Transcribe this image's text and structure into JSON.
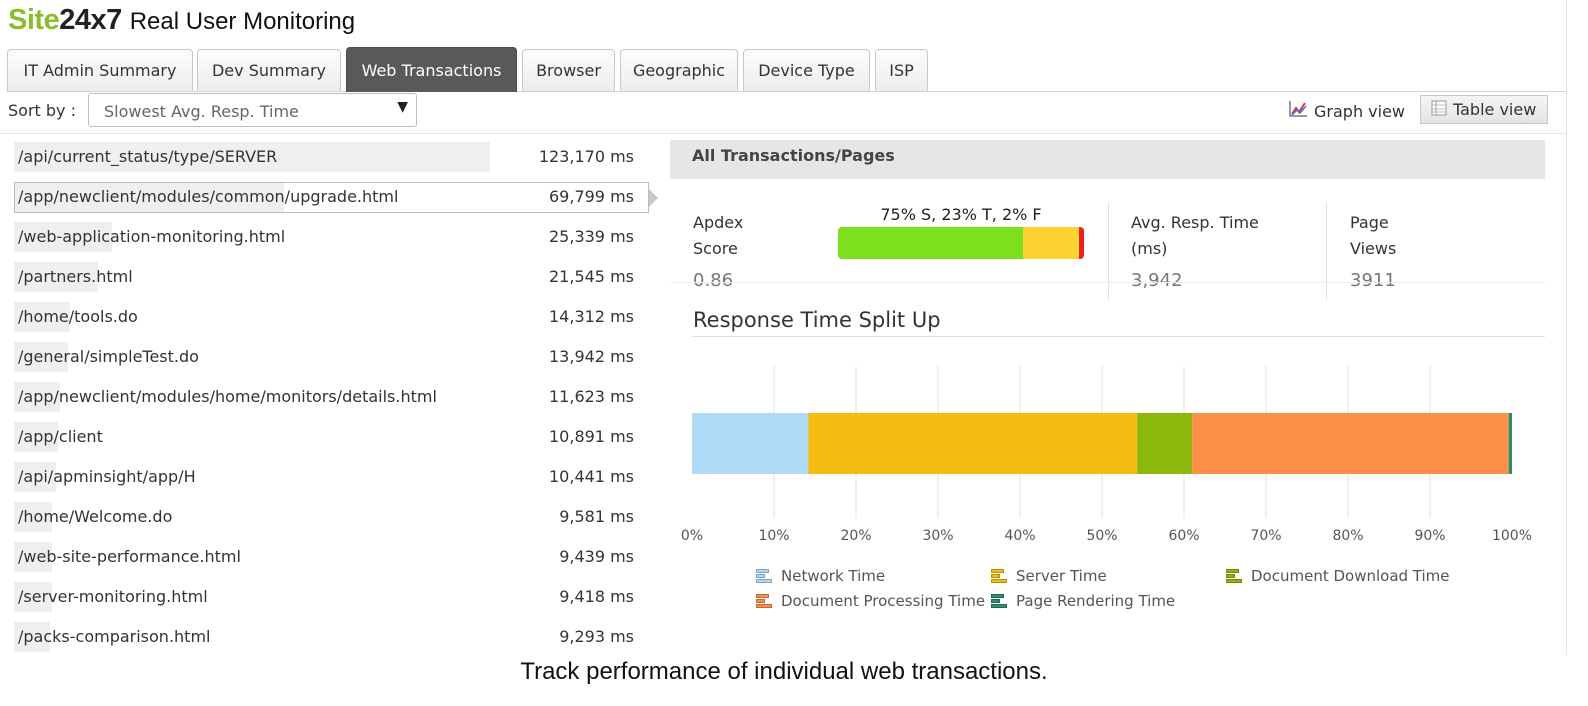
{
  "header": {
    "logo_part1": "Site",
    "logo_part2": "24x7",
    "subtitle": "Real User Monitoring"
  },
  "tabs": [
    {
      "label": "IT Admin Summary",
      "active": false
    },
    {
      "label": "Dev Summary",
      "active": false
    },
    {
      "label": "Web Transactions",
      "active": true
    },
    {
      "label": "Browser",
      "active": false
    },
    {
      "label": "Geographic",
      "active": false
    },
    {
      "label": "Device Type",
      "active": false
    },
    {
      "label": "ISP",
      "active": false
    }
  ],
  "toolbar": {
    "sort_label": "Sort by :",
    "sort_value": "Slowest Avg. Resp. Time",
    "sort_arrow": "▼",
    "graph_view_label": "Graph view",
    "table_view_label": "Table view"
  },
  "transactions": [
    {
      "name": "/api/current_status/type/SERVER",
      "time": "123,170 ms",
      "value_ms": 123170
    },
    {
      "name": "/app/newclient/modules/common/upgrade.html",
      "time": "69,799 ms",
      "value_ms": 69799,
      "selected": true
    },
    {
      "name": "/web-application-monitoring.html",
      "time": "25,339 ms",
      "value_ms": 25339
    },
    {
      "name": "/partners.html",
      "time": "21,545 ms",
      "value_ms": 21545
    },
    {
      "name": "/home/tools.do",
      "time": "14,312 ms",
      "value_ms": 14312
    },
    {
      "name": "/general/simpleTest.do",
      "time": "13,942 ms",
      "value_ms": 13942
    },
    {
      "name": "/app/newclient/modules/home/monitors/details.html",
      "time": "11,623 ms",
      "value_ms": 11623
    },
    {
      "name": "/app/client",
      "time": "10,891 ms",
      "value_ms": 10891
    },
    {
      "name": "/api/apminsight/app/H",
      "time": "10,441 ms",
      "value_ms": 10441
    },
    {
      "name": "/home/Welcome.do",
      "time": "9,581 ms",
      "value_ms": 9581
    },
    {
      "name": "/web-site-performance.html",
      "time": "9,439 ms",
      "value_ms": 9439
    },
    {
      "name": "/server-monitoring.html",
      "time": "9,418 ms",
      "value_ms": 9418
    },
    {
      "name": "/packs-comparison.html",
      "time": "9,293 ms",
      "value_ms": 9293
    }
  ],
  "panel": {
    "heading": "All Transactions/Pages",
    "apdex": {
      "label": "Apdex Score",
      "value": "0.86",
      "distribution_text": "75% S, 23% T, 2% F",
      "segments": [
        {
          "name": "S",
          "percent": 75,
          "color": "#7de01c"
        },
        {
          "name": "T",
          "percent": 23,
          "color": "#fdd234"
        },
        {
          "name": "F",
          "percent": 2,
          "color": "#e8231b"
        }
      ]
    },
    "avg_resp": {
      "label": "Avg. Resp. Time (ms)",
      "value": "3,942"
    },
    "page_views": {
      "label": "Page Views",
      "value": "3911"
    }
  },
  "chart_data": {
    "type": "bar",
    "title": "Response Time Split Up",
    "orientation": "horizontal",
    "stacked": true,
    "xlim": [
      0,
      100
    ],
    "x_ticks": [
      "0%",
      "10%",
      "20%",
      "30%",
      "40%",
      "50%",
      "60%",
      "70%",
      "80%",
      "90%",
      "100%"
    ],
    "grid": true,
    "legend_position": "bottom",
    "series": [
      {
        "name": "Network Time",
        "value": 14.2,
        "color": "#b0d8f7"
      },
      {
        "name": "Server Time",
        "value": 40.1,
        "color": "#f4bc10"
      },
      {
        "name": "Document Download Time",
        "value": 6.7,
        "color": "#8cb80e"
      },
      {
        "name": "Document Processing Time",
        "value": 38.6,
        "color": "#fe8f47"
      },
      {
        "name": "Page Rendering Time",
        "value": 0.4,
        "color": "#2c8c6c"
      }
    ]
  },
  "caption": "Track performance of individual web transactions."
}
